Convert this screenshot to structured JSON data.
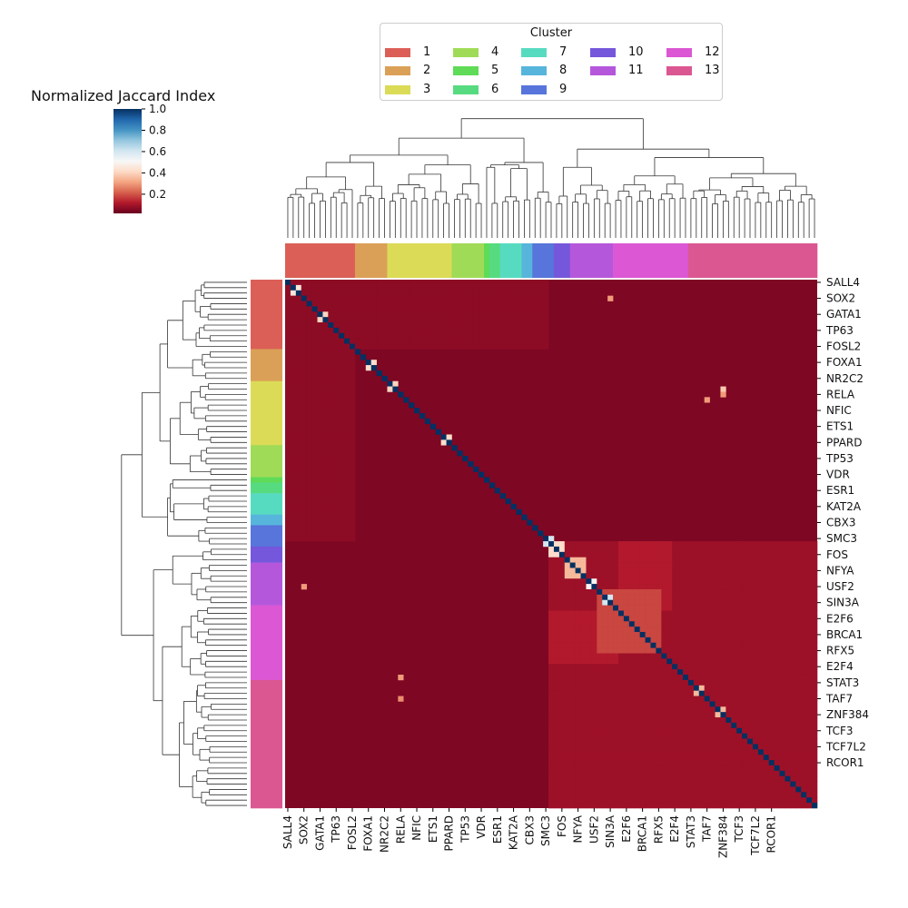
{
  "colorbar": {
    "title": "Normalized Jaccard Index",
    "ticks": [
      "0.2",
      "0.4",
      "0.6",
      "0.8",
      "1.0"
    ],
    "tick_values": [
      0.2,
      0.4,
      0.6,
      0.8,
      1.0
    ],
    "range": [
      0.02,
      1.0
    ],
    "colormap": "RdBu"
  },
  "legend": {
    "title": "Cluster",
    "items": [
      {
        "label": "1",
        "color": "#db5f57"
      },
      {
        "label": "2",
        "color": "#dba057"
      },
      {
        "label": "3",
        "color": "#dbdb57"
      },
      {
        "label": "4",
        "color": "#a0db57"
      },
      {
        "label": "5",
        "color": "#5fdb57"
      },
      {
        "label": "6",
        "color": "#57db80"
      },
      {
        "label": "7",
        "color": "#57dbc0"
      },
      {
        "label": "8",
        "color": "#57b5db"
      },
      {
        "label": "9",
        "color": "#5775db"
      },
      {
        "label": "10",
        "color": "#7557db"
      },
      {
        "label": "11",
        "color": "#b557db"
      },
      {
        "label": "12",
        "color": "#db57d3"
      },
      {
        "label": "13",
        "color": "#db5791"
      }
    ]
  },
  "chart_data": {
    "type": "heatmap",
    "title": "",
    "n_factors": 99,
    "x_tick_labels": [
      "SALL4",
      "SOX2",
      "GATA1",
      "TP63",
      "FOSL2",
      "FOXA1",
      "NR2C2",
      "RELA",
      "NFIC",
      "ETS1",
      "PPARD",
      "TP53",
      "VDR",
      "ESR1",
      "KAT2A",
      "CBX3",
      "SMC3",
      "FOS",
      "NFYA",
      "USF2",
      "SIN3A",
      "E2F6",
      "BRCA1",
      "RFX5",
      "E2F4",
      "STAT3",
      "TAF7",
      "ZNF384",
      "TCF3",
      "TCF7L2",
      "RCOR1"
    ],
    "y_tick_labels": [
      "SALL4",
      "SOX2",
      "GATA1",
      "TP63",
      "FOSL2",
      "FOXA1",
      "NR2C2",
      "RELA",
      "NFIC",
      "ETS1",
      "PPARD",
      "TP53",
      "VDR",
      "ESR1",
      "KAT2A",
      "CBX3",
      "SMC3",
      "FOS",
      "NFYA",
      "USF2",
      "SIN3A",
      "E2F6",
      "BRCA1",
      "RFX5",
      "E2F4",
      "STAT3",
      "TAF7",
      "ZNF384",
      "TCF3",
      "TCF7L2",
      "RCOR1"
    ],
    "tick_label_indices": [
      0,
      3,
      6,
      9,
      12,
      15,
      18,
      21,
      24,
      27,
      30,
      33,
      36,
      39,
      42,
      45,
      48,
      51,
      54,
      57,
      60,
      63,
      66,
      69,
      72,
      75,
      78,
      81,
      84,
      87,
      90
    ],
    "cluster_sizes": [
      13,
      6,
      12,
      6,
      1,
      2,
      4,
      2,
      4,
      3,
      8,
      14,
      24
    ],
    "diagonal_value": 1.0,
    "background_value": 0.05,
    "blocks": [
      {
        "rows": [
          49,
          52
        ],
        "cols": [
          49,
          52
        ],
        "value": 0.42
      },
      {
        "rows": [
          52,
          56
        ],
        "cols": [
          52,
          56
        ],
        "value": 0.35
      },
      {
        "rows": [
          56,
          58
        ],
        "cols": [
          56,
          58
        ],
        "value": 0.5
      },
      {
        "rows": [
          58,
          70
        ],
        "cols": [
          58,
          70
        ],
        "value": 0.18
      },
      {
        "rows": [
          62,
          70
        ],
        "cols": [
          62,
          70
        ],
        "value": 0.28
      },
      {
        "rows": [
          49,
          62
        ],
        "cols": [
          62,
          72
        ],
        "value": 0.12
      },
      {
        "rows": [
          62,
          72
        ],
        "cols": [
          49,
          62
        ],
        "value": 0.12
      },
      {
        "rows": [
          49,
          99
        ],
        "cols": [
          49,
          99
        ],
        "value": 0.09
      },
      {
        "rows": [
          0,
          13
        ],
        "cols": [
          0,
          49
        ],
        "value": 0.07
      },
      {
        "rows": [
          13,
          49
        ],
        "cols": [
          0,
          13
        ],
        "value": 0.07
      }
    ],
    "highlights": [
      {
        "row": 1,
        "col": 2,
        "value": 0.45
      },
      {
        "row": 2,
        "col": 1,
        "value": 0.45
      },
      {
        "row": 6,
        "col": 7,
        "value": 0.4
      },
      {
        "row": 7,
        "col": 6,
        "value": 0.4
      },
      {
        "row": 15,
        "col": 16,
        "value": 0.42
      },
      {
        "row": 16,
        "col": 15,
        "value": 0.42
      },
      {
        "row": 19,
        "col": 20,
        "value": 0.4
      },
      {
        "row": 20,
        "col": 19,
        "value": 0.4
      },
      {
        "row": 29,
        "col": 30,
        "value": 0.42
      },
      {
        "row": 30,
        "col": 29,
        "value": 0.42
      },
      {
        "row": 48,
        "col": 49,
        "value": 0.6
      },
      {
        "row": 49,
        "col": 48,
        "value": 0.6
      },
      {
        "row": 59,
        "col": 60,
        "value": 0.6
      },
      {
        "row": 60,
        "col": 59,
        "value": 0.6
      },
      {
        "row": 76,
        "col": 77,
        "value": 0.35
      },
      {
        "row": 77,
        "col": 76,
        "value": 0.35
      },
      {
        "row": 80,
        "col": 81,
        "value": 0.35
      },
      {
        "row": 81,
        "col": 80,
        "value": 0.35
      },
      {
        "row": 20,
        "col": 81,
        "value": 0.38
      },
      {
        "row": 21,
        "col": 81,
        "value": 0.3
      },
      {
        "row": 22,
        "col": 78,
        "value": 0.3
      },
      {
        "row": 74,
        "col": 21,
        "value": 0.3
      },
      {
        "row": 78,
        "col": 21,
        "value": 0.28
      },
      {
        "row": 3,
        "col": 60,
        "value": 0.3
      },
      {
        "row": 57,
        "col": 3,
        "value": 0.3
      }
    ]
  }
}
